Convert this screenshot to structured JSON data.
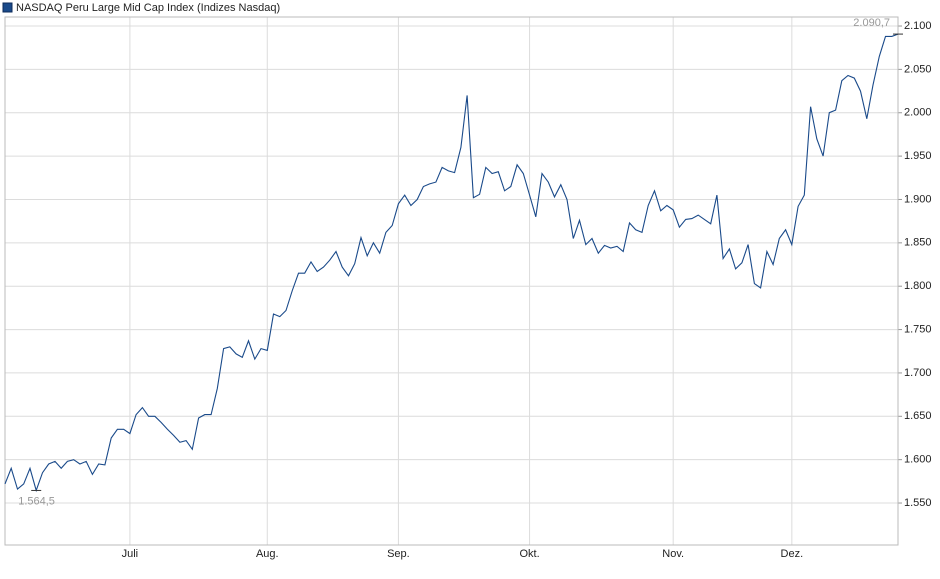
{
  "chart_data": {
    "type": "line",
    "categories": [
      null,
      null,
      null,
      null,
      null,
      null,
      null,
      null,
      null,
      null,
      null,
      null,
      null,
      null,
      null,
      null,
      null,
      null,
      null,
      null,
      "Juli",
      null,
      null,
      null,
      null,
      null,
      null,
      null,
      null,
      null,
      null,
      null,
      null,
      null,
      null,
      null,
      null,
      null,
      null,
      null,
      null,
      null,
      "Aug.",
      null,
      null,
      null,
      null,
      null,
      null,
      null,
      null,
      null,
      null,
      null,
      null,
      null,
      null,
      null,
      null,
      null,
      null,
      null,
      null,
      "Sep.",
      null,
      null,
      null,
      null,
      null,
      null,
      null,
      null,
      null,
      null,
      null,
      null,
      null,
      null,
      null,
      null,
      null,
      null,
      null,
      null,
      "Okt.",
      null,
      null,
      null,
      null,
      null,
      null,
      null,
      null,
      null,
      null,
      null,
      null,
      null,
      null,
      null,
      null,
      null,
      null,
      null,
      null,
      null,
      null,
      "Nov.",
      null,
      null,
      null,
      null,
      null,
      null,
      null,
      null,
      null,
      null,
      null,
      null,
      null,
      null,
      null,
      null,
      null,
      null,
      "Dez.",
      null,
      null,
      null,
      null,
      null,
      null,
      null,
      null,
      null,
      null,
      null,
      null,
      null,
      null,
      null,
      null,
      null
    ],
    "series": [
      {
        "name": "NASDAQ Peru Large Mid Cap Index (Indizes Nasdaq)",
        "color": "#1a4a8a",
        "values": [
          1572,
          1590,
          1566,
          1572,
          1590,
          1564.5,
          1585,
          1595,
          1598,
          1590,
          1598,
          1600,
          1595,
          1598,
          1583,
          1595,
          1594,
          1625,
          1635,
          1635,
          1630,
          1652,
          1660,
          1650,
          1650,
          1643,
          1635,
          1628,
          1620,
          1622,
          1612,
          1648,
          1652,
          1652,
          1682,
          1728,
          1730,
          1722,
          1718,
          1737,
          1716,
          1728,
          1726,
          1768,
          1765,
          1772,
          1795,
          1815,
          1815,
          1828,
          1817,
          1822,
          1830,
          1840,
          1822,
          1812,
          1826,
          1856,
          1835,
          1850,
          1838,
          1862,
          1870,
          1895,
          1905,
          1893,
          1900,
          1915,
          1918,
          1920,
          1937,
          1933,
          1931,
          1960,
          2020,
          1902,
          1906,
          1937,
          1930,
          1932,
          1910,
          1915,
          1940,
          1930,
          1905,
          1880,
          1930,
          1920,
          1903,
          1917,
          1900,
          1855,
          1876,
          1848,
          1855,
          1838,
          1847,
          1844,
          1846,
          1840,
          1873,
          1865,
          1862,
          1893,
          1910,
          1887,
          1893,
          1888,
          1868,
          1877,
          1878,
          1882,
          1877,
          1872,
          1905,
          1832,
          1843,
          1820,
          1827,
          1848,
          1803,
          1798,
          1840,
          1825,
          1855,
          1865,
          1848,
          1892,
          1905,
          2007,
          1970,
          1950,
          2000,
          2003,
          2037,
          2043,
          2040,
          2025,
          1993,
          2032,
          2065,
          2088,
          2088,
          2090.7
        ]
      }
    ],
    "annotations": [
      {
        "text": "1.564,5",
        "value": 1564.5
      },
      {
        "text": "2.090,7",
        "value": 2090.7
      }
    ],
    "ylim": [
      1501.6,
      2110.4
    ],
    "yticks": [
      {
        "value": 1550,
        "label": "1.550"
      },
      {
        "value": 1600,
        "label": "1.600"
      },
      {
        "value": 1650,
        "label": "1.650"
      },
      {
        "value": 1700,
        "label": "1.700"
      },
      {
        "value": 1750,
        "label": "1.750"
      },
      {
        "value": 1800,
        "label": "1.800"
      },
      {
        "value": 1850,
        "label": "1.850"
      },
      {
        "value": 1900,
        "label": "1.900"
      },
      {
        "value": 1950,
        "label": "1.950"
      },
      {
        "value": 2000,
        "label": "2.000"
      },
      {
        "value": 2050,
        "label": "2.050"
      },
      {
        "value": 2100,
        "label": "2.100"
      }
    ],
    "grid": true
  }
}
